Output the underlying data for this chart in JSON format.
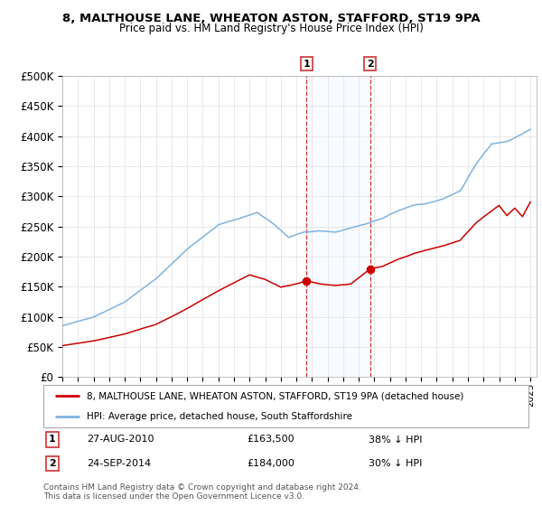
{
  "title1": "8, MALTHOUSE LANE, WHEATON ASTON, STAFFORD, ST19 9PA",
  "title2": "Price paid vs. HM Land Registry's House Price Index (HPI)",
  "legend_line1": "8, MALTHOUSE LANE, WHEATON ASTON, STAFFORD, ST19 9PA (detached house)",
  "legend_line2": "HPI: Average price, detached house, South Staffordshire",
  "transaction1_date": "27-AUG-2010",
  "transaction1_price": 163500,
  "transaction1_label": "38% ↓ HPI",
  "transaction2_date": "24-SEP-2014",
  "transaction2_price": 184000,
  "transaction2_label": "30% ↓ HPI",
  "marker1_year": 2010.65,
  "marker2_year": 2014.72,
  "hpi_color": "#7fb3e0",
  "price_color": "#cc0000",
  "marker_color": "#cc0000",
  "vline_color": "#cc3333",
  "shade_color": "#ddeeff",
  "footer": "Contains HM Land Registry data © Crown copyright and database right 2024.\nThis data is licensed under the Open Government Licence v3.0.",
  "ylim_min": 0,
  "ylim_max": 500000,
  "ytick_step": 50000,
  "hpi_seed": 10,
  "prop_seed": 20
}
